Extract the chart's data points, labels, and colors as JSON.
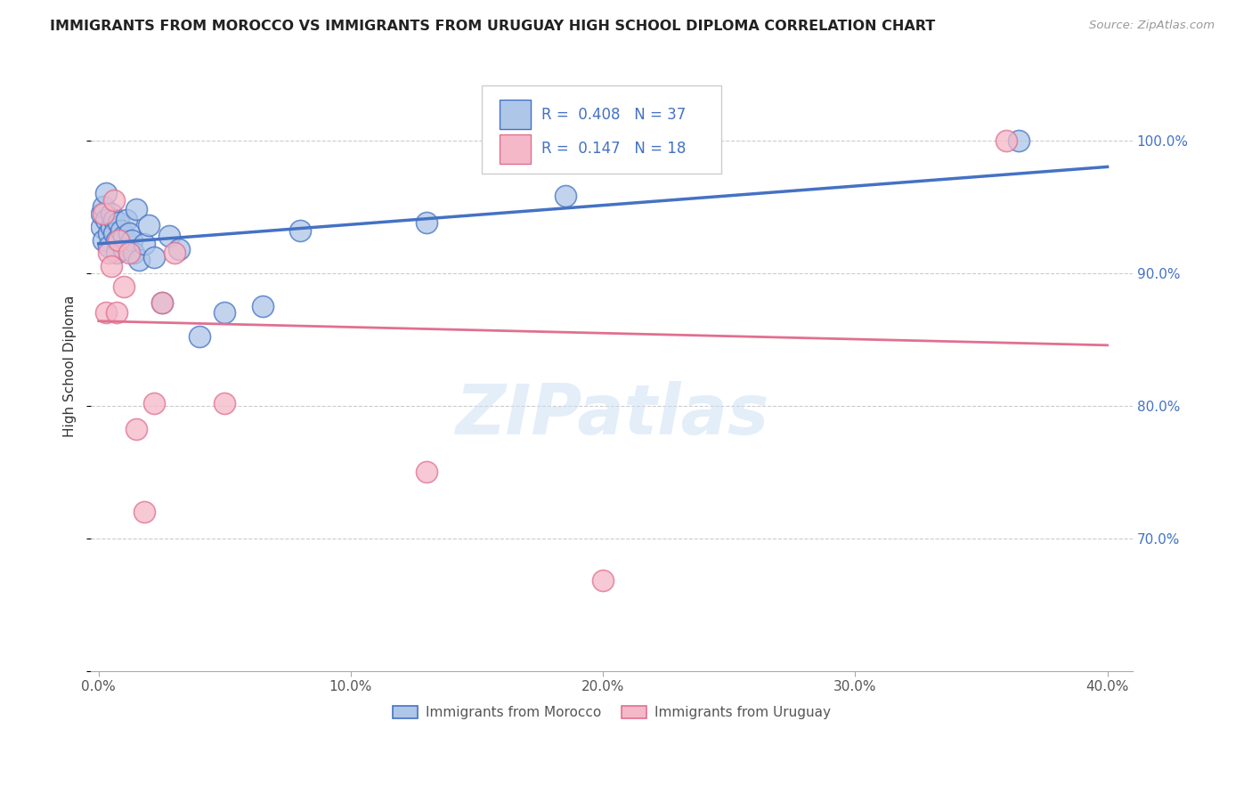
{
  "title": "IMMIGRANTS FROM MOROCCO VS IMMIGRANTS FROM URUGUAY HIGH SCHOOL DIPLOMA CORRELATION CHART",
  "source": "Source: ZipAtlas.com",
  "ylabel": "High School Diploma",
  "xlim": [
    -0.003,
    0.41
  ],
  "ylim": [
    0.6,
    1.06
  ],
  "morocco_R": 0.408,
  "morocco_N": 37,
  "uruguay_R": 0.147,
  "uruguay_N": 18,
  "morocco_color": "#aec6e8",
  "morocco_edge_color": "#4472c4",
  "morocco_line_color": "#4472c4",
  "uruguay_color": "#f4b8c8",
  "uruguay_edge_color": "#e07090",
  "uruguay_line_color": "#e07090",
  "legend_text_color": "#4472c4",
  "ytick_color": "#4472c4",
  "morocco_x": [
    0.001,
    0.001,
    0.002,
    0.002,
    0.003,
    0.003,
    0.004,
    0.004,
    0.005,
    0.005,
    0.006,
    0.006,
    0.007,
    0.007,
    0.008,
    0.009,
    0.01,
    0.01,
    0.011,
    0.012,
    0.013,
    0.014,
    0.015,
    0.016,
    0.018,
    0.02,
    0.022,
    0.025,
    0.028,
    0.032,
    0.04,
    0.05,
    0.065,
    0.08,
    0.13,
    0.185,
    0.365
  ],
  "morocco_y": [
    0.935,
    0.945,
    0.95,
    0.925,
    0.94,
    0.96,
    0.93,
    0.92,
    0.935,
    0.945,
    0.94,
    0.93,
    0.925,
    0.915,
    0.938,
    0.932,
    0.928,
    0.918,
    0.94,
    0.93,
    0.925,
    0.915,
    0.948,
    0.91,
    0.922,
    0.936,
    0.912,
    0.878,
    0.928,
    0.918,
    0.852,
    0.87,
    0.875,
    0.932,
    0.938,
    0.958,
    1.0
  ],
  "uruguay_x": [
    0.002,
    0.003,
    0.004,
    0.005,
    0.006,
    0.007,
    0.008,
    0.01,
    0.012,
    0.015,
    0.018,
    0.022,
    0.025,
    0.03,
    0.05,
    0.13,
    0.2,
    0.36
  ],
  "uruguay_y": [
    0.945,
    0.87,
    0.915,
    0.905,
    0.955,
    0.87,
    0.925,
    0.89,
    0.915,
    0.782,
    0.72,
    0.802,
    0.878,
    0.915,
    0.802,
    0.75,
    0.668,
    1.0
  ],
  "xticks": [
    0.0,
    0.1,
    0.2,
    0.3,
    0.4
  ],
  "xticklabels": [
    "0.0%",
    "10.0%",
    "20.0%",
    "30.0%",
    "40.0%"
  ],
  "yticks": [
    0.7,
    0.8,
    0.9,
    1.0
  ],
  "yticklabels": [
    "70.0%",
    "80.0%",
    "90.0%",
    "100.0%"
  ]
}
